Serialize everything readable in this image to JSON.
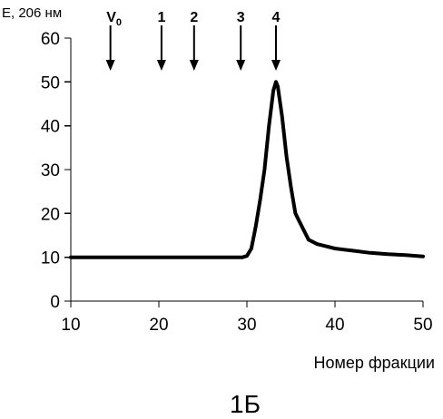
{
  "chart_data": {
    "type": "line",
    "ylabel": "E, 206 нм",
    "xlabel": "Номер фракции",
    "caption": "1Б",
    "xlim": [
      10,
      50
    ],
    "ylim": [
      0,
      60
    ],
    "xticks": [
      10,
      20,
      30,
      40,
      50
    ],
    "yticks": [
      0,
      10,
      20,
      30,
      40,
      50,
      60
    ],
    "grid": false,
    "markers": [
      {
        "label": "V",
        "subscript": "0",
        "x": 14.5
      },
      {
        "label": "1",
        "x": 20.3
      },
      {
        "label": "2",
        "x": 24
      },
      {
        "label": "3",
        "x": 29.3
      },
      {
        "label": "4",
        "x": 33.3
      }
    ],
    "series": [
      {
        "x": [
          10,
          15,
          20,
          25,
          28,
          29,
          29.5,
          30,
          30.5,
          31,
          31.5,
          32,
          32.5,
          33,
          33.3,
          33.5,
          34,
          34.5,
          35,
          35.5,
          36,
          37,
          38,
          39,
          40,
          42,
          44,
          46,
          48,
          50
        ],
        "values": [
          10,
          10,
          10,
          10,
          10,
          10,
          10,
          10.3,
          12,
          17,
          23,
          30,
          40,
          48,
          50,
          49,
          42,
          33,
          26,
          20,
          18,
          14,
          13,
          12.5,
          12,
          11.5,
          11,
          10.7,
          10.5,
          10.2
        ]
      }
    ]
  }
}
